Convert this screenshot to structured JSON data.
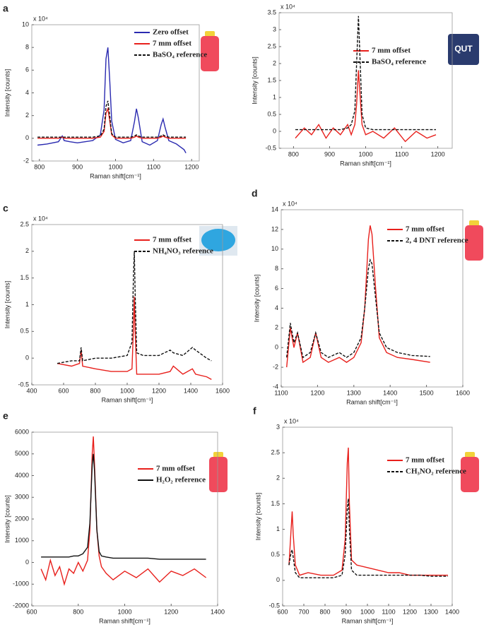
{
  "chart_data": [
    {
      "type": "line",
      "panel": "a",
      "exponent": "x 10⁴",
      "x_label": "Raman shift[cm⁻¹]",
      "y_label": "Intensity [counts]",
      "xlim": [
        780,
        1220
      ],
      "xticks": [
        800,
        900,
        1000,
        1100,
        1200
      ],
      "ylim": [
        -2,
        10
      ],
      "yticks": [
        -2,
        0,
        2,
        4,
        6,
        8,
        10
      ],
      "x": [
        795,
        820,
        850,
        860,
        865,
        880,
        900,
        920,
        940,
        960,
        970,
        975,
        980,
        985,
        990,
        1000,
        1020,
        1040,
        1050,
        1055,
        1060,
        1070,
        1090,
        1110,
        1120,
        1125,
        1130,
        1140,
        1160,
        1180,
        1185
      ],
      "series": [
        {
          "name": "Zero offset",
          "color": "#2a2ab0",
          "dashed": false,
          "values": [
            -0.6,
            -0.5,
            -0.3,
            0.2,
            -0.2,
            -0.3,
            -0.4,
            -0.3,
            -0.2,
            0.3,
            2.5,
            7.0,
            8.0,
            5.0,
            1.5,
            -0.1,
            -0.4,
            -0.2,
            1.5,
            2.6,
            1.8,
            -0.3,
            -0.6,
            -0.2,
            1.2,
            1.7,
            1.0,
            -0.2,
            -0.5,
            -1.0,
            -1.3
          ]
        },
        {
          "name": "7 mm offset",
          "color": "#e8201c",
          "dashed": false,
          "values": [
            0,
            0,
            0,
            0.1,
            0,
            0,
            0,
            0,
            0,
            0.1,
            0.6,
            2.2,
            2.6,
            1.5,
            0.3,
            0,
            0,
            0,
            0.1,
            0.2,
            0.1,
            0,
            0,
            0,
            0.1,
            0.2,
            0.1,
            0,
            0,
            0,
            0
          ]
        },
        {
          "name": "BaSO₄ reference",
          "color": "#111111",
          "dashed": true,
          "values": [
            0.1,
            0.1,
            0.1,
            0.1,
            0.1,
            0.1,
            0.1,
            0.1,
            0.1,
            0.2,
            0.8,
            2.8,
            3.3,
            1.9,
            0.4,
            0.1,
            0.1,
            0.1,
            0.2,
            0.3,
            0.2,
            0.1,
            0.1,
            0.1,
            0.2,
            0.3,
            0.2,
            0.1,
            0.1,
            0.1,
            0.1
          ]
        }
      ]
    },
    {
      "type": "line",
      "panel": "b",
      "exponent": "x 10⁴",
      "x_label": "Raman shift[cm⁻¹]",
      "y_label": "Intensity [counts]",
      "inset_text": "QUT",
      "xlim": [
        760,
        1240
      ],
      "xticks": [
        800,
        900,
        1000,
        1100,
        1200
      ],
      "ylim": [
        -0.5,
        3.5
      ],
      "yticks": [
        -0.5,
        0,
        0.5,
        1,
        1.5,
        2,
        2.5,
        3,
        3.5
      ],
      "x": [
        805,
        830,
        850,
        870,
        890,
        910,
        930,
        950,
        960,
        970,
        975,
        980,
        985,
        990,
        1000,
        1020,
        1050,
        1080,
        1110,
        1140,
        1170,
        1195
      ],
      "series": [
        {
          "name": "7 mm offset",
          "color": "#e8201c",
          "dashed": false,
          "values": [
            -0.2,
            0.1,
            -0.1,
            0.2,
            -0.2,
            0.1,
            -0.1,
            0.2,
            -0.1,
            0.2,
            0.8,
            1.8,
            1.0,
            0.2,
            -0.1,
            0.0,
            -0.2,
            0.1,
            -0.3,
            0,
            -0.2,
            -0.1
          ]
        },
        {
          "name": "BaSO₄ reference",
          "color": "#111111",
          "dashed": true,
          "values": [
            0.05,
            0.05,
            0.05,
            0.05,
            0.05,
            0.05,
            0.05,
            0.1,
            0.2,
            0.6,
            2.0,
            3.4,
            2.0,
            0.5,
            0.1,
            0.05,
            0.05,
            0.05,
            0.05,
            0.05,
            0.05,
            0.05
          ]
        }
      ]
    },
    {
      "type": "line",
      "panel": "c",
      "exponent": "x 10⁴",
      "x_label": "Raman shift[cm⁻¹]",
      "y_label": "Intensity [counts]",
      "xlim": [
        400,
        1600
      ],
      "xticks": [
        400,
        600,
        800,
        1000,
        1200,
        1400,
        1600
      ],
      "ylim": [
        -0.5,
        2.5
      ],
      "yticks": [
        -0.5,
        0,
        0.5,
        1,
        1.5,
        2,
        2.5
      ],
      "x": [
        560,
        650,
        700,
        710,
        720,
        800,
        900,
        1000,
        1030,
        1040,
        1045,
        1050,
        1060,
        1100,
        1200,
        1270,
        1290,
        1350,
        1410,
        1430,
        1500,
        1530
      ],
      "series": [
        {
          "name": "7 mm offset",
          "color": "#e8201c",
          "dashed": false,
          "values": [
            -0.1,
            -0.15,
            -0.1,
            0.15,
            -0.15,
            -0.2,
            -0.25,
            -0.25,
            -0.2,
            0.6,
            1.15,
            0.5,
            -0.3,
            -0.3,
            -0.3,
            -0.25,
            -0.15,
            -0.3,
            -0.2,
            -0.3,
            -0.35,
            -0.4
          ]
        },
        {
          "name": "NH₄NO₃ reference",
          "color": "#111111",
          "dashed": true,
          "values": [
            -0.1,
            -0.05,
            -0.05,
            0.2,
            -0.05,
            0,
            0,
            0.05,
            0.3,
            1.6,
            2.0,
            1.2,
            0.1,
            0.05,
            0.05,
            0.15,
            0.1,
            0.05,
            0.2,
            0.15,
            0,
            -0.05
          ]
        }
      ]
    },
    {
      "type": "line",
      "panel": "d",
      "exponent": "x 10⁴",
      "x_label": "Raman shift[cm⁻¹]",
      "y_label": "Intensity [counts]",
      "xlim": [
        1100,
        1600
      ],
      "xticks": [
        1100,
        1200,
        1300,
        1400,
        1500,
        1600
      ],
      "ylim": [
        -4,
        14
      ],
      "yticks": [
        -4,
        -2,
        0,
        2,
        4,
        6,
        8,
        10,
        12,
        14
      ],
      "x": [
        1115,
        1125,
        1135,
        1145,
        1160,
        1180,
        1195,
        1210,
        1230,
        1260,
        1280,
        1300,
        1320,
        1330,
        1340,
        1345,
        1350,
        1360,
        1370,
        1390,
        1420,
        1460,
        1510
      ],
      "series": [
        {
          "name": "7 mm offset",
          "color": "#e8201c",
          "dashed": false,
          "values": [
            -2,
            2,
            0,
            1.5,
            -1.5,
            -1,
            1.5,
            -1,
            -1.5,
            -1,
            -1.5,
            -1,
            0.5,
            4,
            11,
            12.4,
            11.5,
            6,
            1,
            -0.5,
            -1,
            -1.2,
            -1.5
          ]
        },
        {
          "name": "2, 4 DNT reference",
          "color": "#111111",
          "dashed": true,
          "values": [
            -1,
            2.5,
            0.5,
            1.5,
            -1,
            -0.5,
            1.5,
            -0.5,
            -1,
            -0.5,
            -1,
            -0.5,
            1,
            4,
            8,
            8.9,
            8.5,
            5,
            1.5,
            0,
            -0.5,
            -0.8,
            -0.9
          ]
        }
      ]
    },
    {
      "type": "line",
      "panel": "e",
      "x_label": "Raman shift[cm⁻¹]",
      "y_label": "Intensity [counts]",
      "xlim": [
        600,
        1400
      ],
      "xticks": [
        600,
        800,
        1000,
        1200,
        1400
      ],
      "ylim": [
        -2000,
        6000
      ],
      "yticks": [
        -2000,
        -1000,
        0,
        1000,
        2000,
        3000,
        4000,
        5000,
        6000
      ],
      "x": [
        640,
        660,
        680,
        700,
        720,
        740,
        760,
        780,
        800,
        820,
        840,
        850,
        860,
        865,
        870,
        880,
        890,
        900,
        920,
        950,
        1000,
        1050,
        1100,
        1150,
        1200,
        1250,
        1300,
        1350
      ],
      "series": [
        {
          "name": "7 mm offset",
          "color": "#e8201c",
          "dashed": false,
          "values": [
            -300,
            -800,
            100,
            -600,
            -200,
            -1000,
            -300,
            -500,
            0,
            -400,
            100,
            1500,
            5000,
            5800,
            4500,
            1500,
            300,
            -200,
            -500,
            -800,
            -400,
            -700,
            -300,
            -900,
            -400,
            -600,
            -300,
            -700
          ]
        },
        {
          "name": "H₂O₂ reference",
          "color": "#111111",
          "dashed": false,
          "values": [
            250,
            250,
            250,
            250,
            250,
            250,
            250,
            300,
            300,
            400,
            700,
            1800,
            4500,
            5000,
            4200,
            1500,
            500,
            300,
            250,
            200,
            200,
            200,
            200,
            150,
            150,
            150,
            150,
            150
          ]
        }
      ]
    },
    {
      "type": "line",
      "panel": "f",
      "exponent": "x 10⁴",
      "x_label": "Raman shift[cm⁻¹]",
      "y_label": "Intensity [counts]",
      "xlim": [
        600,
        1400
      ],
      "xticks": [
        600,
        700,
        800,
        900,
        1000,
        1100,
        1200,
        1300,
        1400
      ],
      "ylim": [
        -0.5,
        3
      ],
      "yticks": [
        -0.5,
        0,
        0.5,
        1,
        1.5,
        2,
        2.5,
        3
      ],
      "x": [
        630,
        640,
        645,
        650,
        660,
        680,
        720,
        780,
        840,
        880,
        895,
        905,
        910,
        915,
        925,
        950,
        1000,
        1050,
        1100,
        1150,
        1200,
        1250,
        1300,
        1350,
        1380
      ],
      "series": [
        {
          "name": "7 mm offset",
          "color": "#e8201c",
          "dashed": false,
          "values": [
            0.3,
            1.0,
            1.35,
            0.9,
            0.3,
            0.1,
            0.15,
            0.1,
            0.1,
            0.2,
            0.8,
            2.3,
            2.6,
            1.5,
            0.4,
            0.3,
            0.25,
            0.2,
            0.15,
            0.15,
            0.1,
            0.1,
            0.1,
            0.1,
            0.1
          ]
        },
        {
          "name": "CH₃NO₂ reference",
          "color": "#111111",
          "dashed": true,
          "values": [
            0.3,
            0.55,
            0.6,
            0.45,
            0.15,
            0.05,
            0.05,
            0.05,
            0.05,
            0.1,
            0.5,
            1.4,
            1.6,
            1.0,
            0.2,
            0.1,
            0.1,
            0.1,
            0.1,
            0.1,
            0.1,
            0.1,
            0.08,
            0.08,
            0.08
          ]
        }
      ]
    }
  ]
}
